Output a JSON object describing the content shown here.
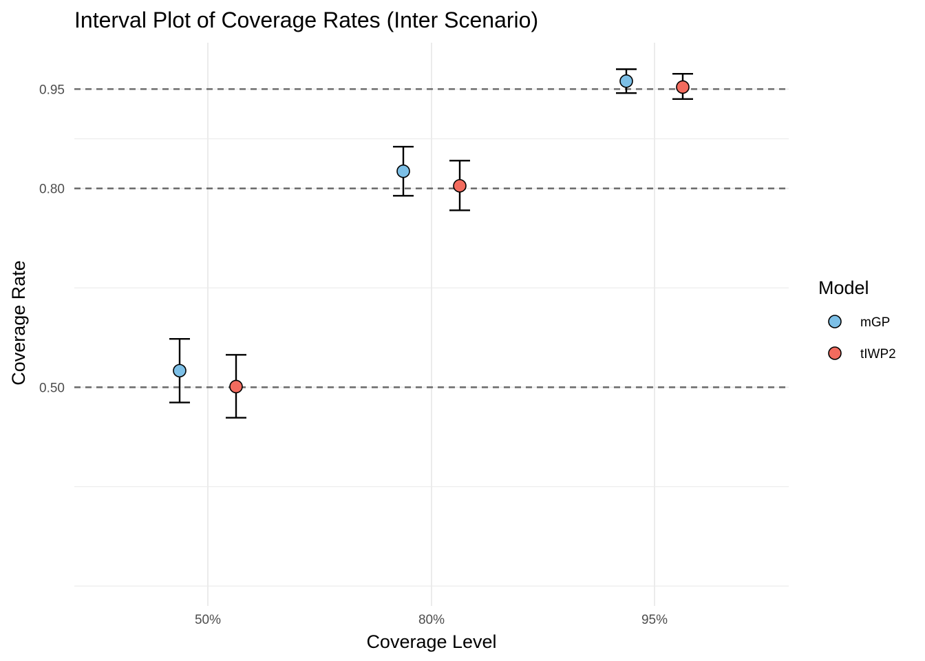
{
  "chart_data": {
    "type": "scatter",
    "title": "Interval Plot of Coverage Rates (Inter Scenario)",
    "xlabel": "Coverage Level",
    "ylabel": "Coverage Rate",
    "categories": [
      "50%",
      "80%",
      "95%"
    ],
    "y_ticks": [
      "0.95",
      "0.80",
      "0.50"
    ],
    "y_tick_values": [
      0.95,
      0.8,
      0.5
    ],
    "ylim": [
      0.17,
      1.02
    ],
    "reference_lines": [
      0.5,
      0.8,
      0.95
    ],
    "grid": true,
    "legend_title": "Model",
    "legend_position": "right",
    "series": [
      {
        "name": "mGP",
        "color": "#7cbfe6",
        "values": [
          0.525,
          0.826,
          0.962
        ],
        "lower": [
          0.477,
          0.789,
          0.944
        ],
        "upper": [
          0.573,
          0.863,
          0.98
        ]
      },
      {
        "name": "tIWP2",
        "color": "#f26b5e",
        "values": [
          0.501,
          0.804,
          0.953
        ],
        "lower": [
          0.454,
          0.767,
          0.935
        ],
        "upper": [
          0.549,
          0.842,
          0.973
        ]
      }
    ]
  }
}
